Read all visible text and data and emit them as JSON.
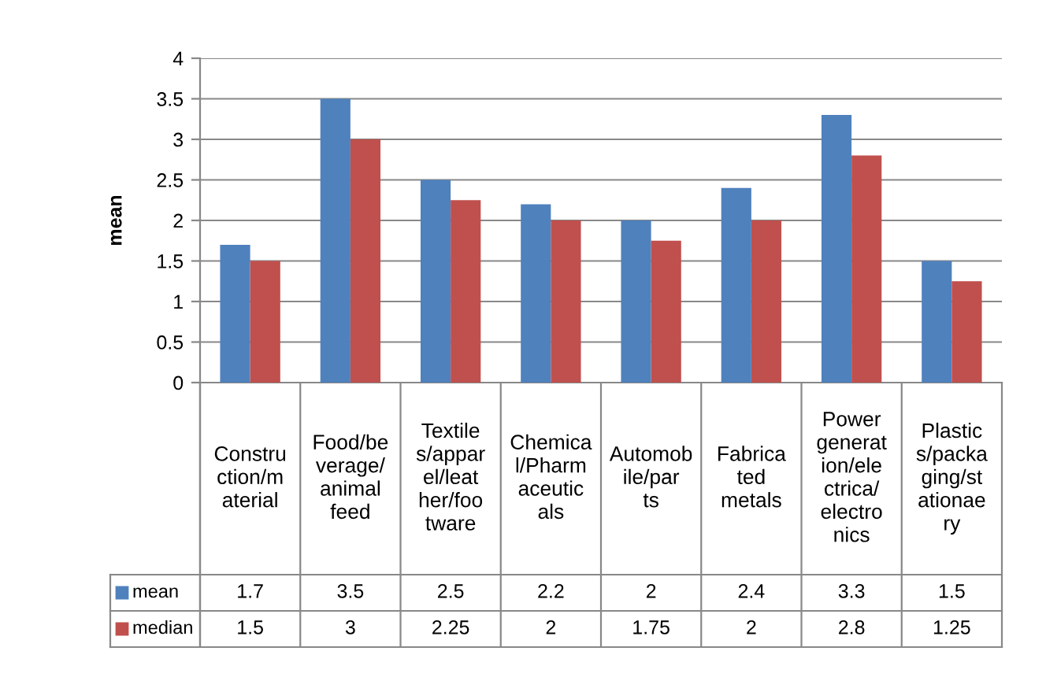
{
  "chart_data": {
    "type": "bar",
    "ylabel": "mean",
    "categories": [
      "Construction/material",
      "Food/beverage/animal feed",
      "Textiles/apparel/leather/footware",
      "Chemical/Pharmaceuticals",
      "Automobile/parts",
      "Fabricated metals",
      "Power generation/electrica/electronics",
      "Plastics/packaging/stationaery"
    ],
    "series": [
      {
        "name": "mean",
        "color": "#4f81bd",
        "values": [
          1.7,
          3.5,
          2.5,
          2.2,
          2,
          2.4,
          3.3,
          1.5
        ]
      },
      {
        "name": "median",
        "color": "#c0504d",
        "values": [
          1.5,
          3,
          2.25,
          2,
          1.75,
          2,
          2.8,
          1.25
        ]
      }
    ],
    "ylim": [
      0,
      4
    ],
    "yticks": [
      0,
      0.5,
      1,
      1.5,
      2,
      2.5,
      3,
      3.5,
      4
    ],
    "grid": "y",
    "data_labels": true,
    "legend": "bottom"
  }
}
